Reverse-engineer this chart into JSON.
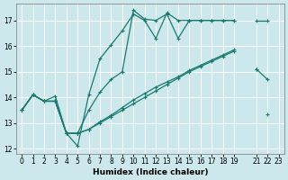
{
  "xlabel": "Humidex (Indice chaleur)",
  "bg_color": "#cce8ed",
  "grid_color": "#ffffff",
  "line_color": "#1a7a6e",
  "xlim": [
    -0.5,
    23.5
  ],
  "ylim": [
    11.8,
    17.65
  ],
  "xtick_vals": [
    0,
    1,
    2,
    3,
    4,
    5,
    6,
    7,
    8,
    9,
    10,
    11,
    12,
    13,
    14,
    15,
    16,
    17,
    18,
    19,
    21,
    22,
    23
  ],
  "ytick_vals": [
    12,
    13,
    14,
    15,
    16,
    17
  ],
  "lines": [
    {
      "segments": [
        {
          "x": [
            0,
            1,
            2,
            3
          ],
          "y": [
            13.5,
            14.1,
            13.85,
            13.85
          ]
        },
        {
          "x": [
            3,
            4,
            5
          ],
          "y": [
            13.85,
            12.6,
            12.6
          ]
        },
        {
          "x": [
            5,
            6,
            7,
            8,
            9,
            10,
            11,
            12,
            13,
            14,
            15,
            16,
            17,
            18,
            19
          ],
          "y": [
            12.6,
            12.75,
            13.0,
            13.25,
            13.5,
            13.75,
            14.0,
            14.25,
            14.5,
            14.75,
            15.0,
            15.2,
            15.4,
            15.6,
            15.8
          ]
        },
        {
          "x": [
            22
          ],
          "y": [
            13.35
          ]
        }
      ]
    },
    {
      "segments": [
        {
          "x": [
            0,
            1,
            2,
            3,
            4,
            5,
            6,
            7,
            8,
            9,
            10,
            11,
            12,
            13,
            14,
            15,
            16,
            17,
            18,
            19
          ],
          "y": [
            13.5,
            14.1,
            13.85,
            13.85,
            12.6,
            12.1,
            14.1,
            15.5,
            16.05,
            16.6,
            17.25,
            17.0,
            16.3,
            17.3,
            17.0,
            17.0,
            17.0,
            17.0,
            17.0,
            17.0
          ]
        },
        {
          "x": [
            21,
            22
          ],
          "y": [
            17.0,
            17.0
          ]
        }
      ]
    },
    {
      "segments": [
        {
          "x": [
            0,
            1,
            2,
            3,
            4,
            5,
            6,
            7,
            8,
            9,
            10,
            11,
            12,
            13,
            14,
            15,
            16,
            17,
            18,
            19
          ],
          "y": [
            13.5,
            14.1,
            13.85,
            14.05,
            12.6,
            12.6,
            13.5,
            14.2,
            14.7,
            15.0,
            17.4,
            17.05,
            17.0,
            17.25,
            16.3,
            17.0,
            17.0,
            17.0,
            17.0,
            17.0
          ]
        },
        {
          "x": [
            21
          ],
          "y": [
            15.1
          ]
        }
      ]
    },
    {
      "segments": [
        {
          "x": [
            0,
            1,
            2,
            3,
            4,
            5,
            6,
            7,
            8,
            9,
            10,
            11,
            12,
            13,
            14,
            15,
            16,
            17,
            18,
            19
          ],
          "y": [
            13.5,
            14.1,
            13.85,
            13.85,
            12.6,
            12.6,
            12.75,
            13.05,
            13.3,
            13.6,
            13.9,
            14.15,
            14.4,
            14.6,
            14.8,
            15.05,
            15.25,
            15.45,
            15.65,
            15.85
          ]
        },
        {
          "x": [
            21,
            22
          ],
          "y": [
            15.1,
            14.7
          ]
        }
      ]
    }
  ]
}
